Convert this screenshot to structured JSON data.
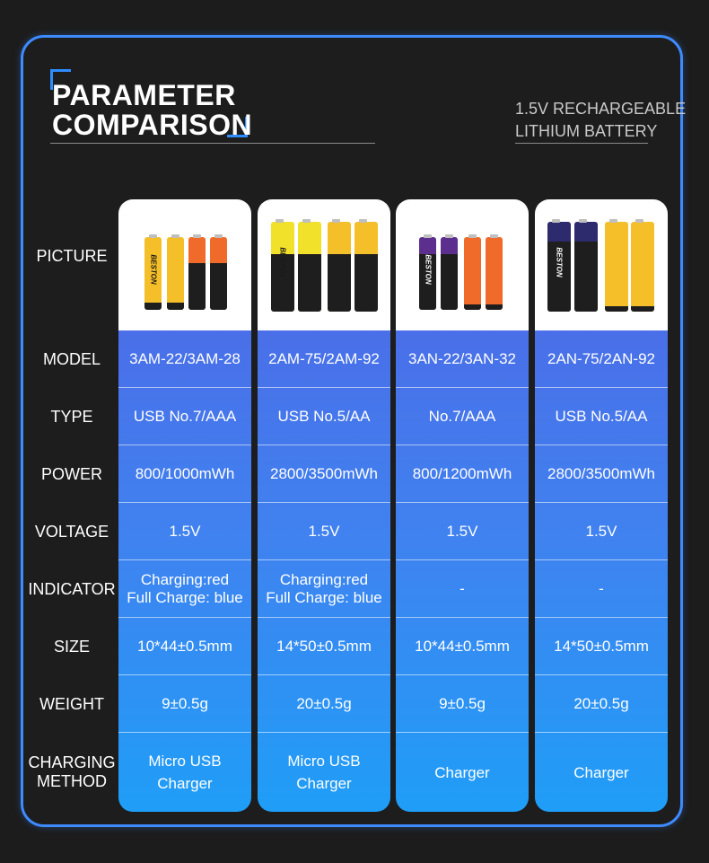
{
  "header": {
    "title_line1": "PARAMETER",
    "title_line2": "COMPARISON",
    "subtitle_line1": "1.5V RECHARGEABLE",
    "subtitle_line2": "LITHIUM BATTERY"
  },
  "colors": {
    "accent": "#2f8cff",
    "frame": "#3d8bff",
    "background": "#1c1c1c"
  },
  "row_labels": {
    "picture": "PICTURE",
    "model": "MODEL",
    "type": "TYPE",
    "power": "POWER",
    "voltage": "VOLTAGE",
    "indicator": "INDICATOR",
    "size": "SIZE",
    "weight": "WEIGHT",
    "charging_line1": "CHARGING",
    "charging_line2": "METHOD"
  },
  "columns": [
    {
      "model": "3AM-22/3AM-28",
      "type": "USB No.7/AAA",
      "power": "800/1000mWh",
      "voltage": "1.5V",
      "indicator_line1": "Charging:red",
      "indicator_line2": "Full Charge: blue",
      "size": "10*44±0.5mm",
      "weight": "9±0.5g",
      "charging_line1": "Micro USB",
      "charging_line2": "Charger",
      "battery_brand": "BESTON"
    },
    {
      "model": "2AM-75/2AM-92",
      "type": "USB No.5/AA",
      "power": "2800/3500mWh",
      "voltage": "1.5V",
      "indicator_line1": "Charging:red",
      "indicator_line2": "Full Charge: blue",
      "size": "14*50±0.5mm",
      "weight": "20±0.5g",
      "charging_line1": "Micro USB",
      "charging_line2": "Charger",
      "battery_brand": "BESTON"
    },
    {
      "model": "3AN-22/3AN-32",
      "type": "No.7/AAA",
      "power": "800/1200mWh",
      "voltage": "1.5V",
      "indicator_line1": "-",
      "indicator_line2": "",
      "size": "10*44±0.5mm",
      "weight": "9±0.5g",
      "charging_line1": "Charger",
      "charging_line2": "",
      "battery_brand": "BESTON"
    },
    {
      "model": "2AN-75/2AN-92",
      "type": "USB No.5/AA",
      "power": "2800/3500mWh",
      "voltage": "1.5V",
      "indicator_line1": "-",
      "indicator_line2": "",
      "size": "14*50±0.5mm",
      "weight": "20±0.5g",
      "charging_line1": "Charger",
      "charging_line2": "",
      "battery_brand": "BESTON"
    }
  ]
}
